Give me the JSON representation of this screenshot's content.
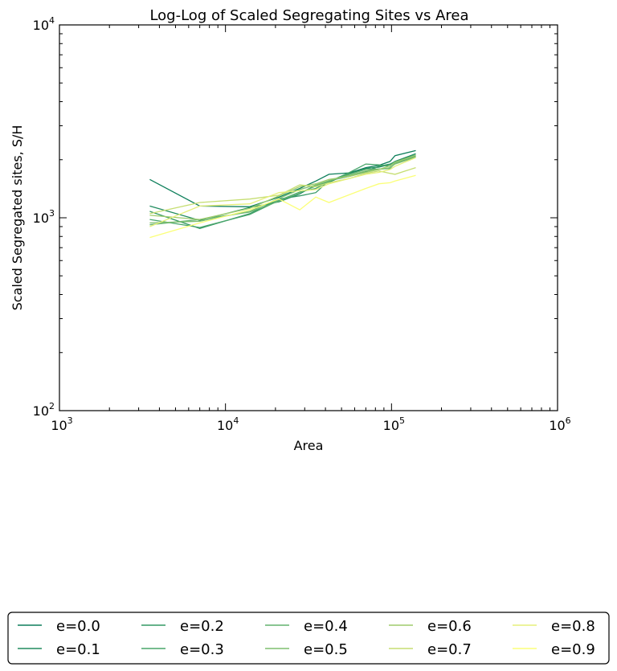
{
  "chart_data": {
    "type": "line",
    "title": "Log-Log of Scaled Segregating Sites vs Area",
    "xlabel": "Area",
    "ylabel": "Scaled Segregated sites, S/H",
    "xscale": "log",
    "yscale": "log",
    "xlim": [
      1000,
      1000000
    ],
    "ylim": [
      100,
      10000
    ],
    "x_ticks": [
      {
        "base": "10",
        "exp": "3",
        "value": 1000
      },
      {
        "base": "10",
        "exp": "4",
        "value": 10000
      },
      {
        "base": "10",
        "exp": "5",
        "value": 100000
      },
      {
        "base": "10",
        "exp": "6",
        "value": 1000000
      }
    ],
    "y_ticks": [
      {
        "base": "10",
        "exp": "2",
        "value": 100
      },
      {
        "base": "10",
        "exp": "3",
        "value": 1000
      },
      {
        "base": "10",
        "exp": "4",
        "value": 10000
      }
    ],
    "grid": false,
    "legend_position": "bottom",
    "x": [
      3500,
      7000,
      14000,
      21000,
      28000,
      35000,
      42000,
      56000,
      70000,
      84000,
      98000,
      105000,
      140000
    ],
    "series": [
      {
        "name": "e=0.0",
        "color": "#0e7f5b",
        "values": [
          1580,
          1150,
          1140,
          1280,
          1420,
          1550,
          1680,
          1710,
          1820,
          1870,
          1960,
          2100,
          2230
        ]
      },
      {
        "name": "e=0.1",
        "color": "#218c5f",
        "values": [
          1150,
          970,
          1130,
          1210,
          1330,
          1480,
          1530,
          1700,
          1800,
          1830,
          1890,
          1960,
          2150
        ]
      },
      {
        "name": "e=0.2",
        "color": "#349864",
        "values": [
          1080,
          880,
          1050,
          1250,
          1300,
          1350,
          1560,
          1640,
          1730,
          1850,
          1900,
          1950,
          2120
        ]
      },
      {
        "name": "e=0.3",
        "color": "#48a56a",
        "values": [
          980,
          890,
          1040,
          1230,
          1360,
          1420,
          1540,
          1720,
          1900,
          1880,
          1850,
          1950,
          2100
        ]
      },
      {
        "name": "e=0.4",
        "color": "#62b26f",
        "values": [
          920,
          980,
          1070,
          1220,
          1350,
          1460,
          1550,
          1680,
          1780,
          1790,
          1800,
          1920,
          2080
        ]
      },
      {
        "name": "e=0.5",
        "color": "#7fbf6f",
        "values": [
          940,
          960,
          1080,
          1260,
          1400,
          1480,
          1560,
          1660,
          1750,
          1780,
          1820,
          1900,
          2060
        ]
      },
      {
        "name": "e=0.6",
        "color": "#9fcc6c",
        "values": [
          1030,
          980,
          1120,
          1300,
          1450,
          1500,
          1580,
          1640,
          1720,
          1780,
          1860,
          1940,
          2110
        ]
      },
      {
        "name": "e=0.7",
        "color": "#c6de72",
        "values": [
          1050,
          1200,
          1250,
          1310,
          1480,
          1450,
          1520,
          1600,
          1700,
          1750,
          1700,
          1680,
          1820
        ]
      },
      {
        "name": "e=0.8",
        "color": "#e6ef7a",
        "values": [
          900,
          1150,
          1180,
          1350,
          1380,
          1400,
          1500,
          1600,
          1680,
          1720,
          1780,
          1850,
          2050
        ]
      },
      {
        "name": "e=0.9",
        "color": "#fbff78",
        "values": [
          790,
          940,
          1100,
          1250,
          1100,
          1280,
          1200,
          1320,
          1420,
          1500,
          1520,
          1550,
          1660
        ]
      }
    ]
  }
}
